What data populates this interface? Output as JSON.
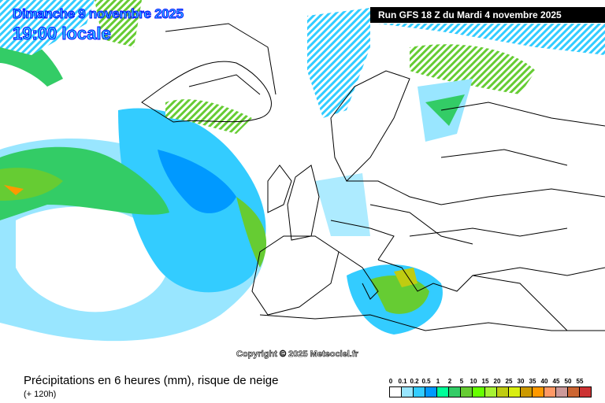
{
  "header": {
    "date": "Dimanche 9 novembre 2025",
    "time": "19:00 locale",
    "run": "Run GFS 18 Z du Mardi 4 novembre 2025"
  },
  "map": {
    "copyright": "Copyright © 2025 Meteociel.fr"
  },
  "footer": {
    "title": "Précipitations en 6 heures (mm), risque de neige",
    "subtitle": "(+ 120h)"
  },
  "legend": {
    "labels": [
      "0",
      "0.1",
      "0.2",
      "0.5",
      "1",
      "2",
      "5",
      "10",
      "15",
      "20",
      "25",
      "30",
      "35",
      "40",
      "45",
      "50",
      "55"
    ],
    "colors": [
      "#ffffff",
      "#99e6ff",
      "#33ccff",
      "#0099ff",
      "#00ff99",
      "#33cc66",
      "#66cc33",
      "#66ff00",
      "#a6f233",
      "#bfcc11",
      "#d9ee11",
      "#cc9900",
      "#ff9900",
      "#ff9966",
      "#cc9999",
      "#cc6633",
      "#cc3333"
    ]
  }
}
